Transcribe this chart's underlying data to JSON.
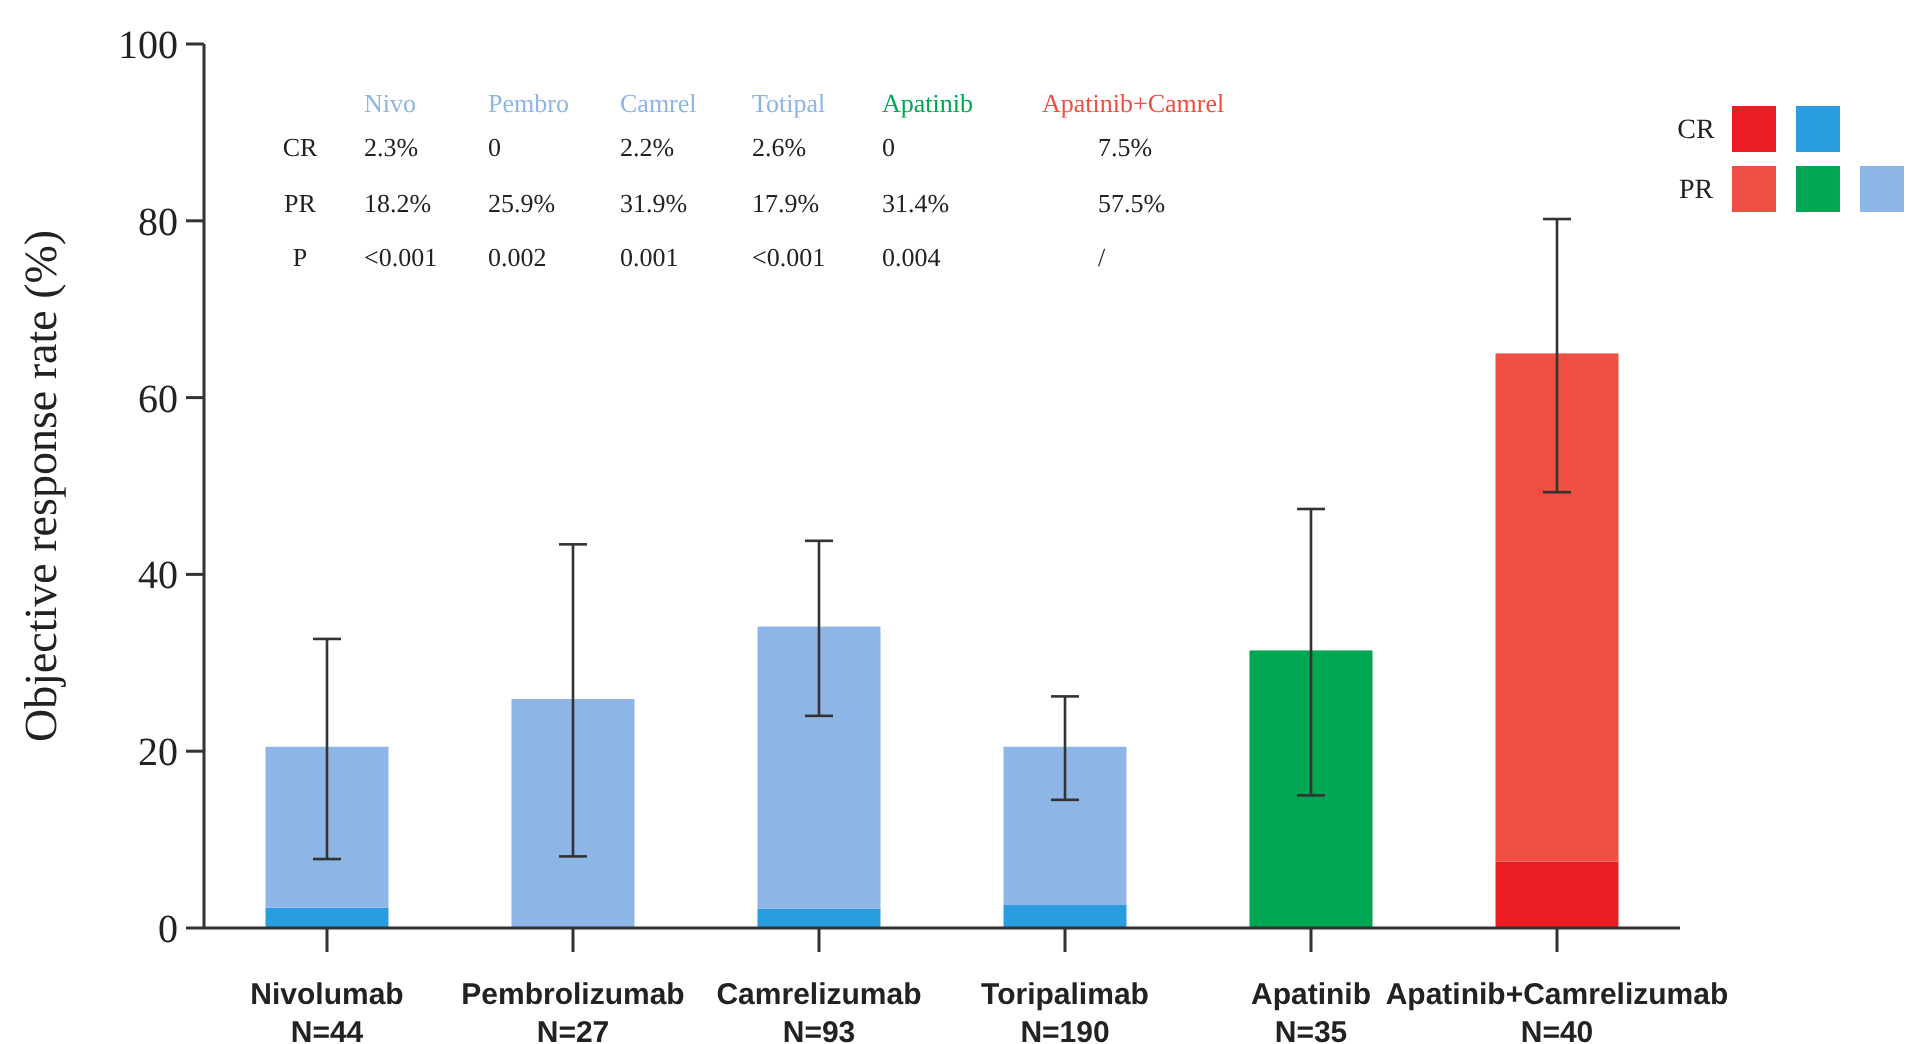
{
  "chart_data": {
    "type": "bar",
    "stacked": true,
    "ylabel": "Objective response rate (%)",
    "categories": [
      "Nivolumab\nN=44",
      "Pembrolizumab\nN=27",
      "Camrelizumab\nN=93",
      "Toripalimab\nN=190",
      "Apatinib\nN=35",
      "Apatinib+Camrelizumab\nN=40"
    ],
    "series": [
      {
        "name": "CR",
        "colors": [
          "#2a9de0",
          "#2a9de0",
          "#2a9de0",
          "#2a9de0",
          "#2a9de0",
          "#ec1c24"
        ],
        "values": [
          2.3,
          0,
          2.2,
          2.6,
          0,
          7.5
        ]
      },
      {
        "name": "PR",
        "colors": [
          "#8db5e5",
          "#8db5e5",
          "#8db5e5",
          "#8db5e5",
          "#00a651",
          "#ef4f43"
        ],
        "values": [
          18.2,
          25.9,
          31.9,
          17.9,
          31.4,
          57.5
        ],
        "errors": [
          [
            7.8,
            32.7
          ],
          [
            8.1,
            43.4
          ],
          [
            24.0,
            43.8
          ],
          [
            14.5,
            26.2
          ],
          [
            15.0,
            47.4
          ],
          [
            49.3,
            80.2
          ]
        ]
      }
    ],
    "annotations": [
      "Nivo",
      "Pembro",
      "Camrel",
      "Totipal",
      "Apatinib",
      "Apatinib+Camrel",
      "CR",
      "2.3%",
      "0",
      "2.2%",
      "2.6%",
      "0",
      "7.5%",
      "PR",
      "18.2%",
      "25.9%",
      "31.9%",
      "17.9%",
      "31.4%",
      "57.5%",
      "P",
      "<0.001",
      "0.002",
      "0.001",
      "<0.001",
      "0.004",
      "/"
    ],
    "ylim": [
      0,
      100
    ],
    "yticks": [
      0,
      20,
      40,
      60,
      80,
      100
    ],
    "grid": false,
    "legend": "top right"
  }
}
